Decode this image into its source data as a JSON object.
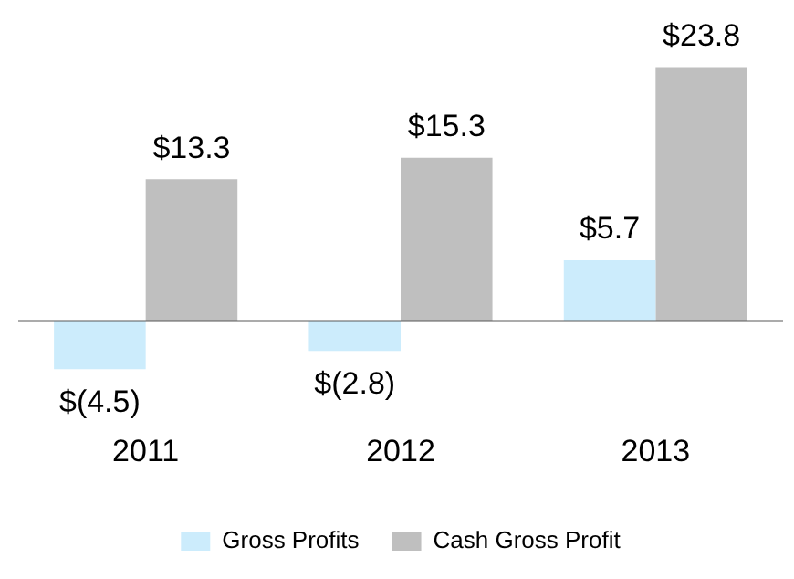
{
  "chart_data": {
    "type": "bar",
    "categories": [
      "2011",
      "2012",
      "2013"
    ],
    "series": [
      {
        "name": "Gross Profits",
        "color": "#ccecfc",
        "values": [
          -4.5,
          -2.8,
          5.7
        ],
        "value_labels": [
          "$(4.5)",
          "$(2.8)",
          "$5.7"
        ]
      },
      {
        "name": "Cash Gross Profit",
        "color": "#bfbfbf",
        "values": [
          13.3,
          15.3,
          23.8
        ],
        "value_labels": [
          "$13.3",
          "$15.3",
          "$23.8"
        ]
      }
    ],
    "legend": "bottom",
    "grid": false
  }
}
